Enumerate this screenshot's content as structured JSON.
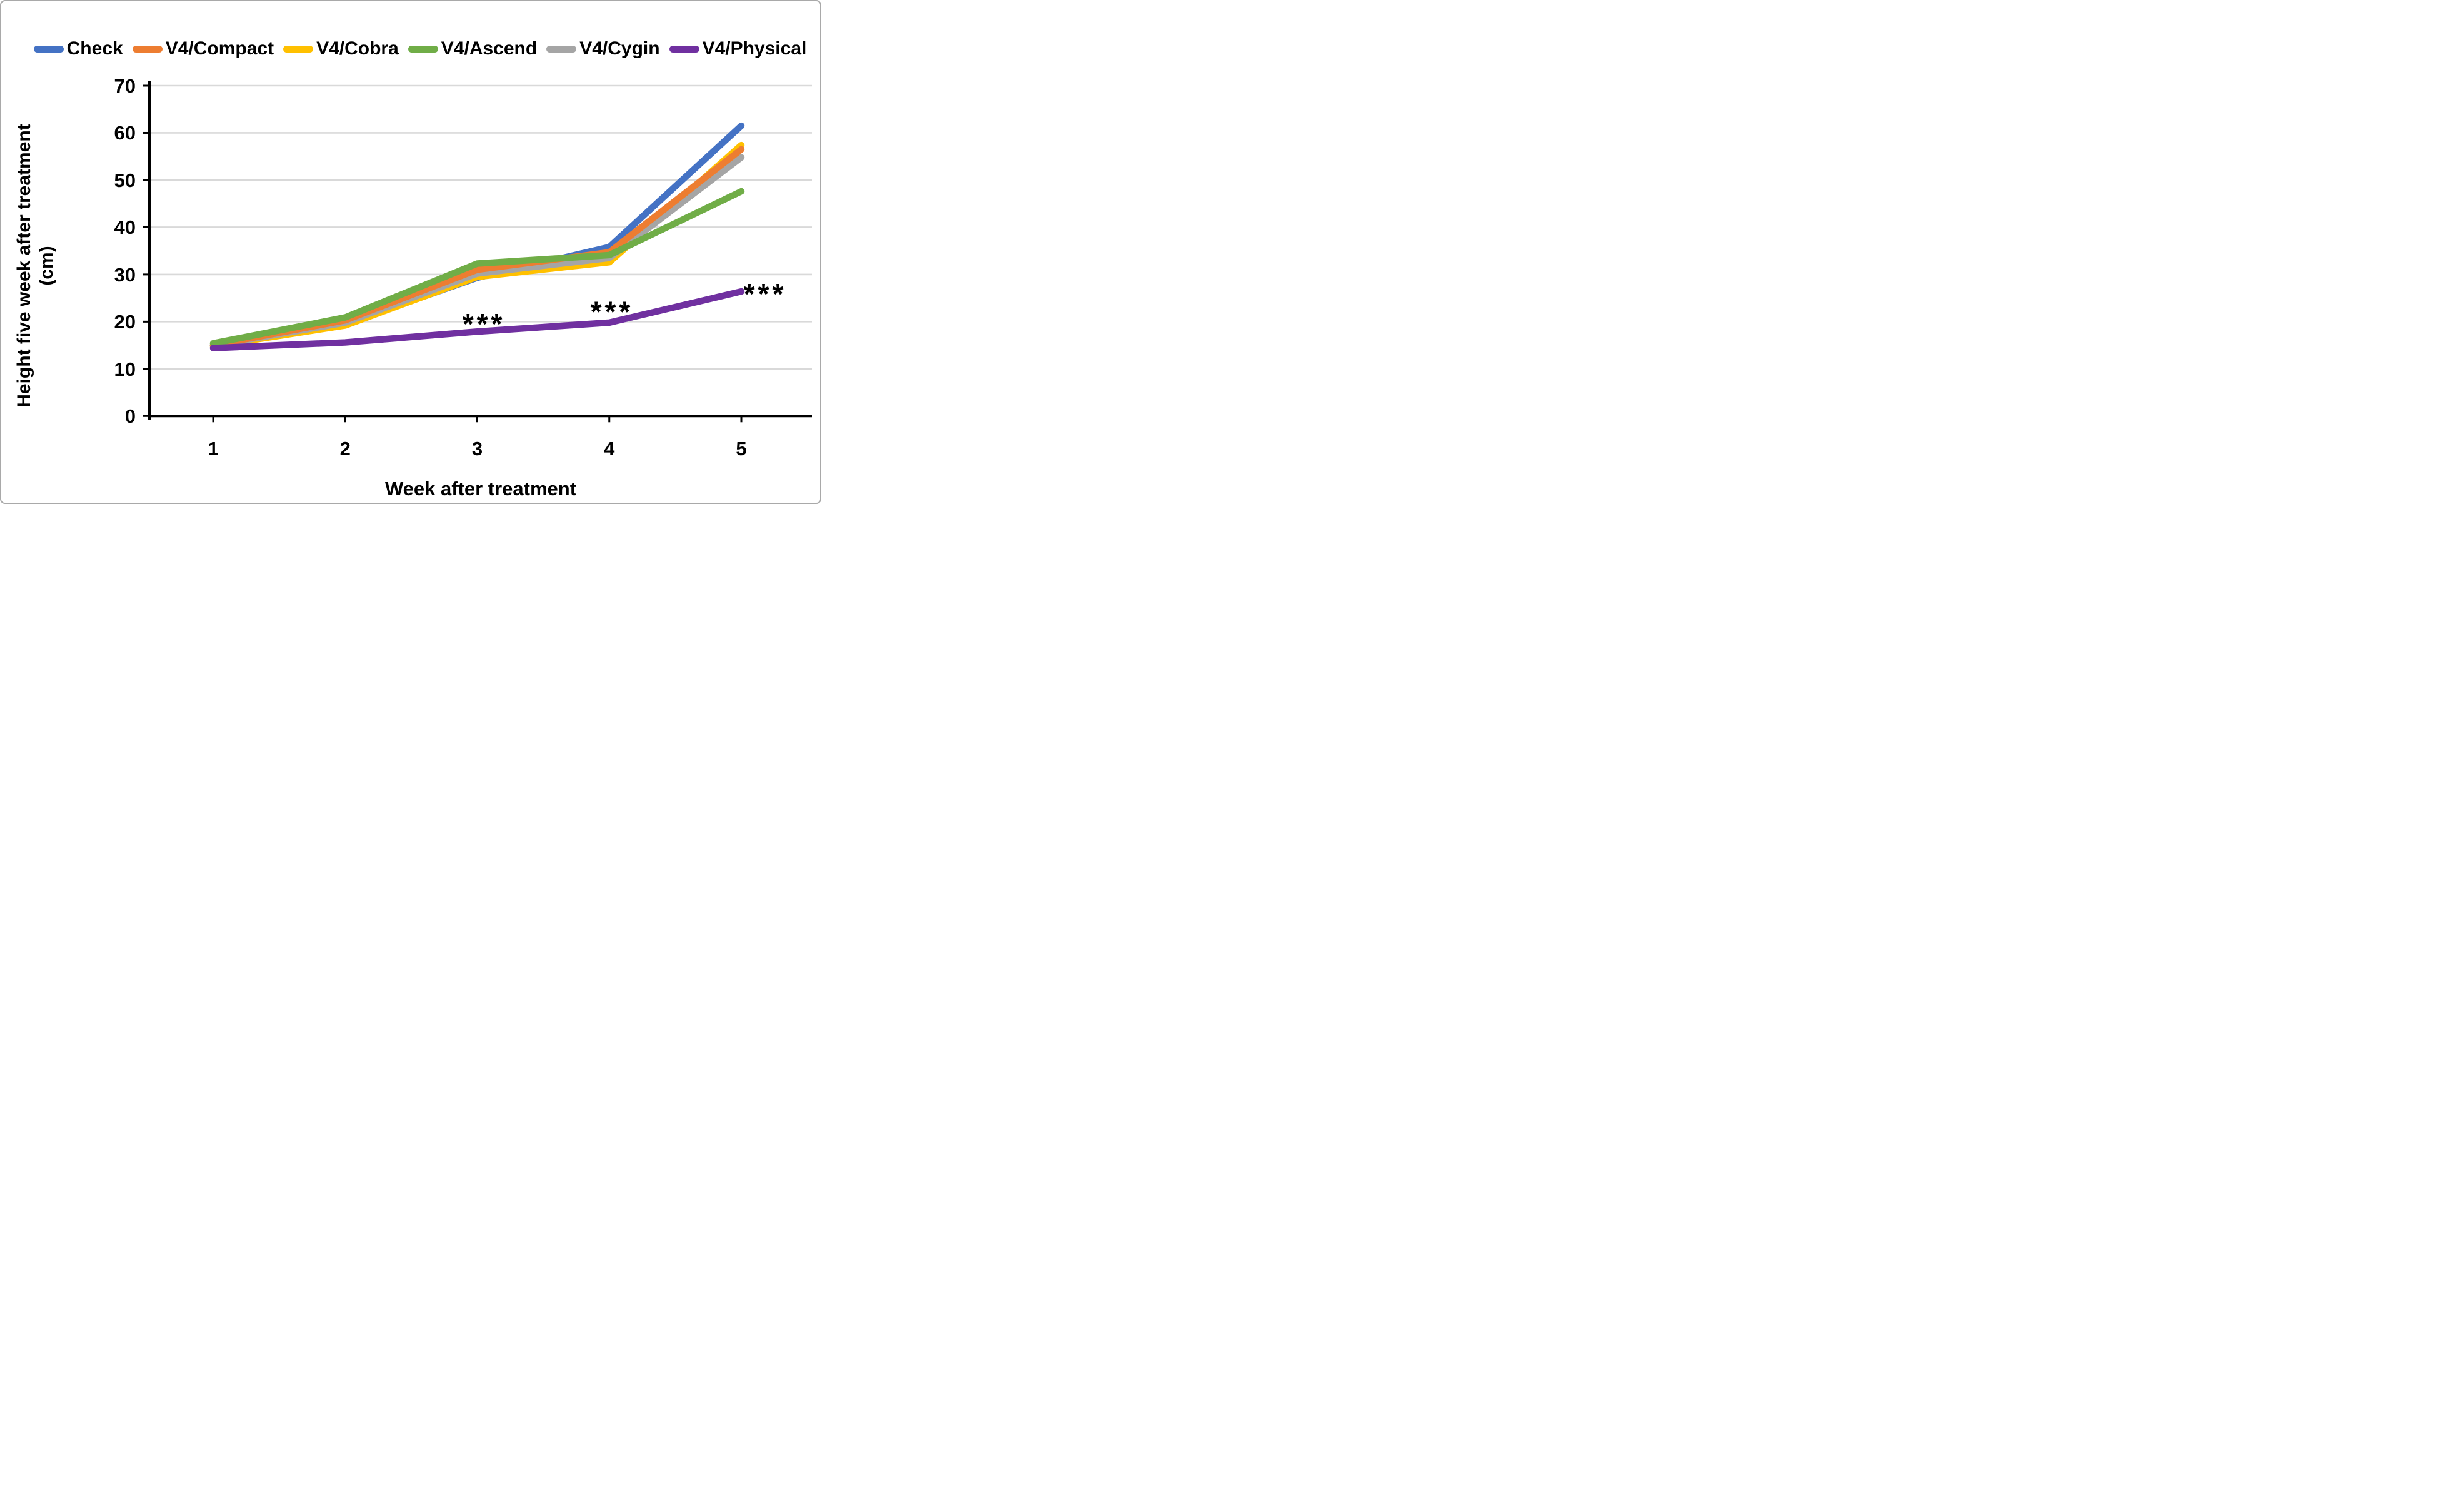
{
  "frame": {
    "background": "#ffffff",
    "border_color": "#a9a9a9"
  },
  "chart_data": {
    "type": "line",
    "title": "",
    "x": [
      1,
      2,
      3,
      4,
      5
    ],
    "xlabel": "Week after treatment",
    "ylabel_line1": "Height five week after treatment",
    "ylabel_line2": "(cm)",
    "ylim": [
      0,
      70
    ],
    "yticks": [
      0,
      10,
      20,
      30,
      40,
      50,
      60,
      70
    ],
    "grid": true,
    "legend_position": "top",
    "axis_color": "#000000",
    "gridline_color": "#d9d9d9",
    "series": [
      {
        "name": "Check",
        "color": "#4472C4",
        "values": [
          15.0,
          19.5,
          29.3,
          35.8,
          61.5
        ]
      },
      {
        "name": "V4/Compact",
        "color": "#ED7D31",
        "values": [
          15.0,
          20.3,
          31.0,
          34.7,
          56.5
        ]
      },
      {
        "name": "V4/Cobra",
        "color": "#FFC000",
        "values": [
          14.8,
          19.2,
          29.5,
          32.6,
          57.4
        ]
      },
      {
        "name": "V4/Ascend",
        "color": "#70AD47",
        "values": [
          15.4,
          20.9,
          32.3,
          34.1,
          47.6
        ]
      },
      {
        "name": "V4/Cygin",
        "color": "#A5A5A5",
        "values": [
          14.9,
          19.8,
          30.2,
          33.5,
          54.8
        ]
      },
      {
        "name": "V4/Physical",
        "color": "#7030A0",
        "values": [
          14.4,
          15.6,
          17.9,
          19.8,
          26.4
        ]
      }
    ],
    "draw_order": [
      0,
      2,
      4,
      1,
      3,
      5
    ],
    "annotations": [
      {
        "text": "***",
        "week": 3.05,
        "value": 20.3
      },
      {
        "text": "***",
        "week": 4.02,
        "value": 22.9
      },
      {
        "text": "***",
        "week": 5.18,
        "value": 26.7
      }
    ]
  }
}
